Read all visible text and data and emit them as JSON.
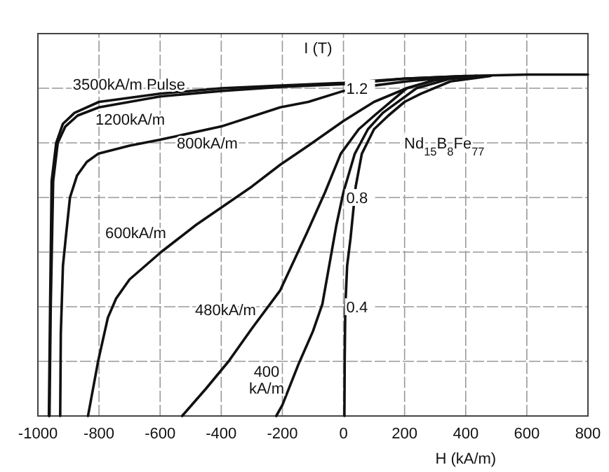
{
  "chart_data": {
    "type": "line",
    "xlabel": "H (kA/m)",
    "ylabel": "I (T)",
    "xlim": [
      -1000,
      800
    ],
    "xticks": [
      -1000,
      -800,
      -600,
      -400,
      -200,
      0,
      200,
      400,
      600,
      800
    ],
    "ylim": [
      0,
      1.4
    ],
    "yticks": [
      {
        "value": 0.2,
        "label": null
      },
      0.4,
      {
        "value": 0.6,
        "label": null
      },
      0.8,
      {
        "value": 1.0,
        "label": null
      },
      1.2,
      {
        "value": 1.4,
        "label": null
      }
    ],
    "grid": true,
    "marker": "none",
    "line_style": "solid",
    "annotations": [
      "Nd$_{15}$B$_{8}$Fe$_{77}$"
    ],
    "series": [
      {
        "name": "3500kA/m Pulse",
        "color": "#111111",
        "x": [
          -964,
          -960,
          -955,
          -940,
          -918,
          -880,
          -800,
          -600,
          -400,
          -200,
          0,
          200,
          400,
          600,
          800
        ],
        "values": [
          0,
          0.4,
          0.86,
          1.0,
          1.07,
          1.11,
          1.15,
          1.18,
          1.2,
          1.21,
          1.22,
          1.235,
          1.245,
          1.25,
          1.25
        ]
      },
      {
        "name": "1200kA/m",
        "color": "#111111",
        "x": [
          -962,
          -958,
          -950,
          -935,
          -910,
          -870,
          -800,
          -600,
          -400,
          -200,
          0,
          200,
          400
        ],
        "values": [
          0,
          0.4,
          0.86,
          1.0,
          1.06,
          1.1,
          1.13,
          1.17,
          1.19,
          1.205,
          1.215,
          1.235,
          1.245
        ]
      },
      {
        "name": "800kA/m",
        "color": "#111111",
        "x": [
          -927,
          -925,
          -918,
          -909,
          -895,
          -872,
          -840,
          -803,
          -700,
          -606,
          -400,
          -207,
          -115,
          0,
          100,
          206,
          300,
          436
        ],
        "values": [
          0,
          0.3,
          0.55,
          0.65,
          0.8,
          0.88,
          0.93,
          0.96,
          0.99,
          1.01,
          1.06,
          1.13,
          1.15,
          1.19,
          1.21,
          1.225,
          1.235,
          1.245
        ]
      },
      {
        "name": "600kA/m",
        "color": "#111111",
        "x": [
          -836,
          -803,
          -771,
          -744,
          -700,
          -597,
          -482,
          -300,
          -207,
          -115,
          0,
          100,
          207,
          300,
          436
        ],
        "values": [
          0,
          0.2,
          0.36,
          0.43,
          0.5,
          0.6,
          0.7,
          0.84,
          0.92,
          0.99,
          1.08,
          1.15,
          1.2,
          1.23,
          1.245
        ]
      },
      {
        "name": "480kA/m",
        "color": "#111111",
        "x": [
          -528,
          -450,
          -376,
          -300,
          -207,
          -120,
          -60,
          -9,
          50,
          101,
          207,
          300,
          436
        ],
        "values": [
          0,
          0.1,
          0.2,
          0.32,
          0.46,
          0.67,
          0.82,
          0.96,
          1.05,
          1.1,
          1.2,
          1.23,
          1.245
        ]
      },
      {
        "name": "400 kA/m",
        "color": "#111111",
        "x": [
          -220,
          -200,
          -147,
          -100,
          -69,
          -23,
          0,
          37,
          80,
          129,
          239,
          350,
          460
        ],
        "values": [
          0,
          0.04,
          0.19,
          0.31,
          0.41,
          0.7,
          0.82,
          0.96,
          1.05,
          1.11,
          1.2,
          1.235,
          1.245
        ]
      },
      {
        "color": "#111111",
        "x": [
          3,
          4,
          6,
          12,
          23,
          40,
          60,
          100,
          147,
          200,
          253,
          350,
          482
        ],
        "values": [
          0,
          0.2,
          0.4,
          0.55,
          0.65,
          0.84,
          0.96,
          1.05,
          1.1,
          1.15,
          1.18,
          1.225,
          1.245
        ]
      }
    ]
  }
}
